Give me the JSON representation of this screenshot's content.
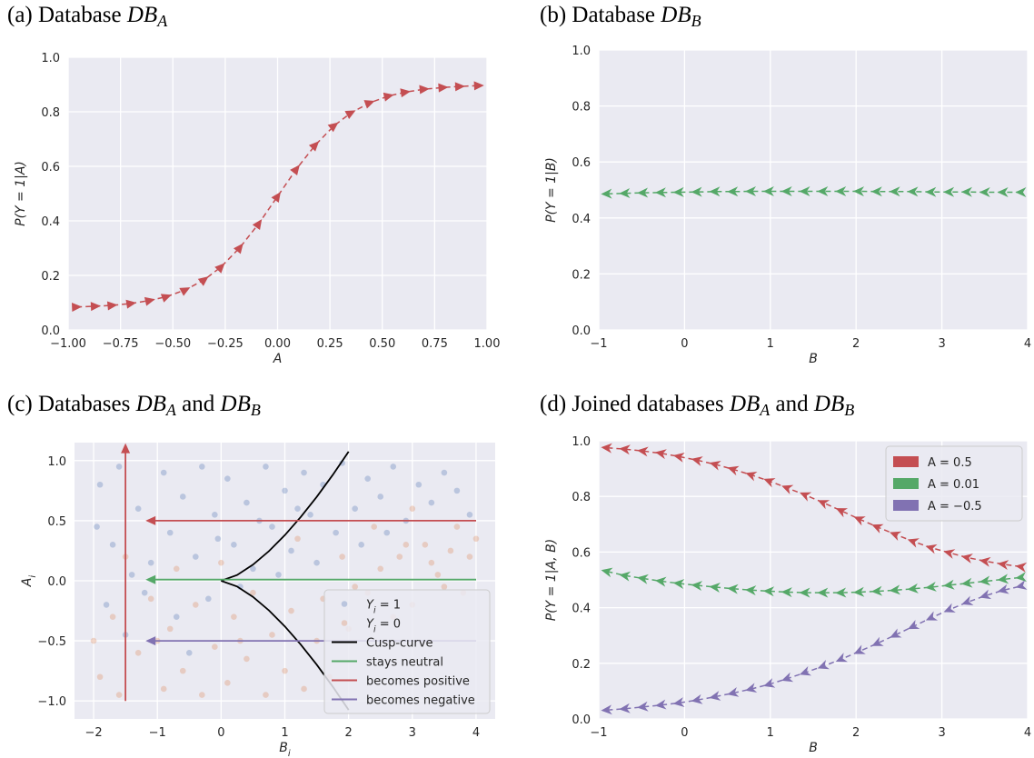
{
  "chart_data": [
    {
      "type": "line",
      "title": "(a) Database DBA",
      "xlabel": "A",
      "ylabel": "P(Y = 1|A)",
      "xlim": [
        -1,
        1
      ],
      "ylim": [
        0,
        1
      ],
      "xticks": [
        {
          "value": -1,
          "label": "−1.00"
        },
        {
          "value": -0.75,
          "label": "−0.75"
        },
        {
          "value": -0.5,
          "label": "−0.50"
        },
        {
          "value": -0.25,
          "label": "−0.25"
        },
        {
          "value": 0,
          "label": "0.00"
        },
        0.25,
        {
          "value": 0.5,
          "label": "0.50"
        },
        0.75,
        {
          "value": 1,
          "label": "1.00"
        }
      ],
      "yticks": [
        {
          "value": 0,
          "label": "0.0"
        },
        0.2,
        0.4,
        0.6,
        0.8,
        {
          "value": 1,
          "label": "1.0"
        }
      ],
      "grid": true,
      "marker": "triangle",
      "marker_direction": "forward",
      "x": [
        -0.96,
        -0.87,
        -0.79,
        -0.7,
        -0.61,
        -0.53,
        -0.44,
        -0.35,
        -0.27,
        -0.18,
        -0.09,
        0.0,
        0.09,
        0.18,
        0.27,
        0.35,
        0.44,
        0.53,
        0.61,
        0.7,
        0.79,
        0.87,
        0.96
      ],
      "series": [
        {
          "color": "#c44e52",
          "values": [
            0.084,
            0.087,
            0.09,
            0.097,
            0.108,
            0.122,
            0.147,
            0.184,
            0.231,
            0.302,
            0.39,
            0.49,
            0.59,
            0.678,
            0.749,
            0.796,
            0.833,
            0.858,
            0.872,
            0.883,
            0.889,
            0.893,
            0.896
          ]
        }
      ]
    },
    {
      "type": "line",
      "title": "(b) Database DBB",
      "xlabel": "B",
      "ylabel": "P(Y = 1|B)",
      "xlim": [
        -1,
        4
      ],
      "ylim": [
        0,
        1
      ],
      "xticks": [
        {
          "value": -1,
          "label": "−1"
        },
        0,
        1,
        2,
        3,
        4
      ],
      "yticks": [
        {
          "value": 0,
          "label": "0.0"
        },
        0.2,
        0.4,
        0.6,
        0.8,
        {
          "value": 1,
          "label": "1.0"
        }
      ],
      "grid": true,
      "marker": "arrow",
      "marker_direction": "backward",
      "x": [
        -0.9,
        -0.69,
        -0.48,
        -0.27,
        -0.06,
        0.15,
        0.36,
        0.57,
        0.78,
        0.99,
        1.2,
        1.41,
        1.62,
        1.83,
        2.04,
        2.25,
        2.46,
        2.67,
        2.88,
        3.09,
        3.3,
        3.51,
        3.72,
        3.93
      ],
      "series": [
        {
          "color": "#55a868",
          "values": [
            0.486,
            0.488,
            0.49,
            0.491,
            0.492,
            0.493,
            0.494,
            0.494,
            0.495,
            0.495,
            0.495,
            0.495,
            0.495,
            0.495,
            0.495,
            0.494,
            0.494,
            0.494,
            0.493,
            0.493,
            0.493,
            0.492,
            0.492,
            0.492
          ]
        }
      ]
    },
    {
      "type": "scatter",
      "title": "(c) Databases DBA and DBB",
      "xlabel": "Bi",
      "ylabel": "Ai",
      "xlim": [
        -2.3,
        4.3
      ],
      "ylim": [
        -1.15,
        1.15
      ],
      "xticks": [
        {
          "value": -2,
          "label": "−2"
        },
        {
          "value": -1,
          "label": "−1"
        },
        0,
        1,
        2,
        3,
        4
      ],
      "yticks": [
        {
          "value": -1,
          "label": "−1.0"
        },
        {
          "value": -0.5,
          "label": "−0.5"
        },
        {
          "value": 0,
          "label": "0.0"
        },
        0.5,
        {
          "value": 1,
          "label": "1.0"
        }
      ],
      "grid": true,
      "legend": "lower right",
      "series": [
        {
          "name": "Yi = 1",
          "color": "#4c72b0",
          "x": [
            -1.9,
            -1.7,
            -1.6,
            -1.3,
            -1.1,
            -0.9,
            -0.8,
            -0.6,
            -0.4,
            -0.3,
            -0.1,
            0.1,
            0.2,
            0.4,
            0.5,
            0.7,
            0.8,
            1.0,
            1.1,
            1.3,
            1.4,
            1.6,
            1.8,
            1.9,
            2.1,
            2.3,
            2.5,
            2.7,
            2.9,
            3.1,
            3.3,
            3.5,
            3.7,
            3.9,
            -1.8,
            -1.5,
            -1.2,
            -0.7,
            -0.2,
            0.3,
            -1.4,
            -0.5,
            0.9,
            1.5,
            2.2,
            -1.95,
            -0.05,
            0.6,
            1.2,
            2.6
          ],
          "values": [
            0.8,
            0.3,
            0.95,
            0.6,
            0.15,
            0.9,
            0.4,
            0.7,
            0.2,
            0.95,
            0.55,
            0.85,
            0.3,
            0.65,
            0.1,
            0.95,
            0.45,
            0.75,
            0.25,
            0.9,
            0.55,
            0.8,
            0.4,
            0.98,
            0.6,
            0.85,
            0.7,
            0.95,
            0.5,
            0.8,
            0.65,
            0.9,
            0.75,
            0.55,
            -0.2,
            -0.45,
            -0.1,
            -0.3,
            -0.15,
            -0.05,
            0.05,
            -0.6,
            0.05,
            0.15,
            0.3,
            0.45,
            0.35,
            0.5,
            0.6,
            0.4
          ]
        },
        {
          "name": "Yi = 0",
          "color": "#dd8452",
          "x": [
            -1.9,
            -1.7,
            -1.6,
            -1.3,
            -1.1,
            -0.9,
            -0.8,
            -0.6,
            -0.4,
            -0.3,
            -0.1,
            0.1,
            0.2,
            0.4,
            0.5,
            0.7,
            0.8,
            1.0,
            1.1,
            1.3,
            1.5,
            1.7,
            2.0,
            2.3,
            2.5,
            2.8,
            3.0,
            3.2,
            3.4,
            3.6,
            3.8,
            4.0,
            2.4,
            3.0,
            3.7,
            -1.5,
            -0.7,
            0.0,
            1.2,
            1.9,
            2.1,
            2.9,
            3.3,
            3.9,
            -2.0,
            -1.0,
            0.3,
            1.6,
            2.7,
            3.5
          ],
          "values": [
            -0.8,
            -0.3,
            -0.95,
            -0.6,
            -0.15,
            -0.9,
            -0.4,
            -0.75,
            -0.2,
            -0.95,
            -0.55,
            -0.85,
            -0.3,
            -0.65,
            -0.1,
            -0.95,
            -0.45,
            -0.75,
            -0.25,
            -0.9,
            -0.5,
            -0.8,
            -0.4,
            -0.1,
            0.1,
            0.2,
            -0.2,
            0.3,
            0.05,
            0.25,
            -0.1,
            0.35,
            0.45,
            0.6,
            0.45,
            0.2,
            0.1,
            0.15,
            0.35,
            0.2,
            -0.05,
            0.3,
            0.15,
            0.2,
            -0.5,
            -0.5,
            -0.5,
            -0.15,
            -0.3,
            -0.05
          ]
        }
      ],
      "lines": [
        {
          "name": "Cusp-curve",
          "color": "#000000",
          "arrow": false,
          "x": [
            0,
            0.25,
            0.5,
            0.75,
            1,
            1.25,
            1.5,
            1.75,
            2,
            null,
            0,
            0.25,
            0.5,
            0.75,
            1,
            1.25,
            1.5,
            1.75,
            2
          ],
          "values": [
            0,
            0.048,
            0.134,
            0.247,
            0.38,
            0.531,
            0.698,
            0.88,
            1.075,
            null,
            0,
            -0.048,
            -0.134,
            -0.247,
            -0.38,
            -0.531,
            -0.698,
            -0.88,
            -1.075
          ]
        },
        {
          "name": "stays neutral",
          "color": "#55a868",
          "arrow": true,
          "x": [
            4,
            -1.1
          ],
          "values": [
            0.01,
            0.01
          ]
        },
        {
          "name": "becomes positive",
          "color": "#c44e52",
          "arrow": true,
          "x": [
            4,
            -1.1,
            null,
            -1.5,
            -1.5
          ],
          "values": [
            0.5,
            0.5,
            null,
            -1,
            1.1
          ]
        },
        {
          "name": "becomes negative",
          "color": "#8172b2",
          "arrow": true,
          "x": [
            4,
            -1.1
          ],
          "values": [
            -0.5,
            -0.5
          ]
        }
      ]
    },
    {
      "type": "line",
      "title": "(d) Joined databases DBA and DBB",
      "xlabel": "B",
      "ylabel": "P(Y = 1|A, B)",
      "xlim": [
        -1,
        4
      ],
      "ylim": [
        0,
        1
      ],
      "xticks": [
        {
          "value": -1,
          "label": "−1"
        },
        0,
        1,
        2,
        3,
        4
      ],
      "yticks": [
        {
          "value": 0,
          "label": "0.0"
        },
        0.2,
        0.4,
        0.6,
        0.8,
        {
          "value": 1,
          "label": "1.0"
        }
      ],
      "grid": true,
      "marker": "arrow",
      "marker_direction": "backward",
      "legend": "upper right",
      "x": [
        -0.9,
        -0.69,
        -0.48,
        -0.27,
        -0.06,
        0.15,
        0.36,
        0.57,
        0.78,
        0.99,
        1.2,
        1.41,
        1.62,
        1.83,
        2.04,
        2.25,
        2.46,
        2.67,
        2.88,
        3.09,
        3.3,
        3.51,
        3.72,
        3.93
      ],
      "series": [
        {
          "name": "A = 0.5",
          "color": "#c44e52",
          "values": [
            0.975,
            0.97,
            0.963,
            0.955,
            0.943,
            0.93,
            0.915,
            0.897,
            0.877,
            0.855,
            0.83,
            0.805,
            0.777,
            0.748,
            0.718,
            0.69,
            0.663,
            0.638,
            0.615,
            0.597,
            0.58,
            0.567,
            0.556,
            0.547
          ]
        },
        {
          "name": "A = 0.01",
          "color": "#55a868",
          "values": [
            0.53,
            0.515,
            0.505,
            0.495,
            0.487,
            0.48,
            0.474,
            0.468,
            0.463,
            0.459,
            0.456,
            0.454,
            0.454,
            0.454,
            0.456,
            0.459,
            0.463,
            0.468,
            0.474,
            0.481,
            0.488,
            0.495,
            0.502,
            0.509
          ]
        },
        {
          "name": "A = −0.5",
          "color": "#8172b2",
          "values": [
            0.032,
            0.037,
            0.043,
            0.05,
            0.058,
            0.068,
            0.08,
            0.093,
            0.108,
            0.125,
            0.145,
            0.167,
            0.19,
            0.215,
            0.243,
            0.272,
            0.302,
            0.333,
            0.364,
            0.393,
            0.42,
            0.443,
            0.463,
            0.478
          ]
        }
      ]
    }
  ]
}
